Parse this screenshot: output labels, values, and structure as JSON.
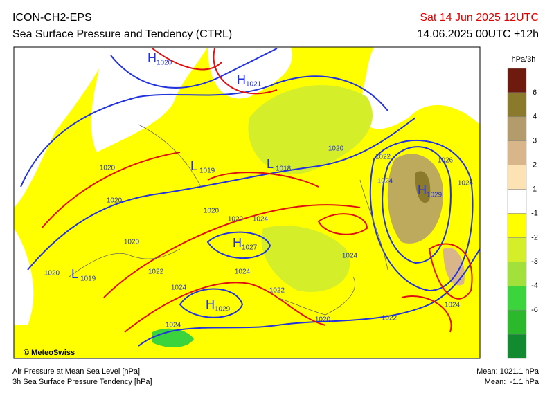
{
  "header": {
    "model": "ICON-CH2-EPS",
    "title": "Sea Surface Pressure and Tendency (CTRL)",
    "valid": "Sat 14 Jun 2025 12UTC",
    "run": "14.06.2025 00UTC +12h"
  },
  "legend": {
    "unit": "hPa/3h",
    "labels": [
      "6",
      "4",
      "3",
      "2",
      "1",
      "-1",
      "-2",
      "-3",
      "-4",
      "-6"
    ],
    "colors": [
      "#6e1a0e",
      "#8c7a2c",
      "#b39b6c",
      "#d9b68a",
      "#fde2b4",
      "#ffffff",
      "#ffff00",
      "#d4ef2a",
      "#a2e03c",
      "#3cd43c",
      "#2bb82b",
      "#128a30"
    ]
  },
  "map": {
    "centers": [
      {
        "kind": "H",
        "value": "1020"
      },
      {
        "kind": "H",
        "value": "1021"
      },
      {
        "kind": "L",
        "value": "1019"
      },
      {
        "kind": "L",
        "value": "1018"
      },
      {
        "kind": "H",
        "value": "1029"
      },
      {
        "kind": "H",
        "value": "1027"
      },
      {
        "kind": "H",
        "value": "1029"
      },
      {
        "kind": "L",
        "value": "1019"
      }
    ],
    "isobar_labels": [
      "1020",
      "1020",
      "1020",
      "1020",
      "1022",
      "1024",
      "1024",
      "1020",
      "1022",
      "1024",
      "1024",
      "1022",
      "1024",
      "1020",
      "1022",
      "1024",
      "1020",
      "1022",
      "1024",
      "1026",
      "1024"
    ]
  },
  "footer": {
    "credit": "© MeteoSwiss",
    "line1": "Air Pressure at Mean Sea Level [hPa]",
    "line2": "3h Sea Surface Pressure Tendency [hPa]",
    "mean1": "Mean: 1021.1 hPa",
    "mean2": "Mean:  -1.1 hPa"
  }
}
